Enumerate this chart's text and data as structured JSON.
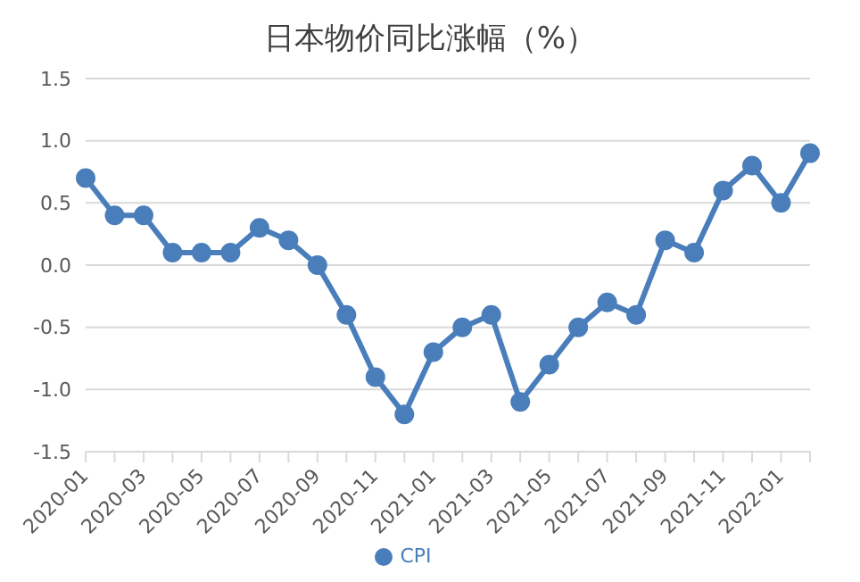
{
  "chart_data": {
    "type": "line",
    "title": "日本物价同比涨幅（%）",
    "categories": [
      "2020-01",
      null,
      "2020-03",
      null,
      "2020-05",
      null,
      "2020-07",
      null,
      "2020-09",
      null,
      "2020-11",
      null,
      "2021-01",
      null,
      "2021-03",
      null,
      "2021-05",
      null,
      "2021-07",
      null,
      "2021-09",
      null,
      "2021-11",
      null,
      "2022-01",
      null
    ],
    "series": [
      {
        "name": "CPI",
        "color": "#4a7ebb",
        "values": [
          0.7,
          0.4,
          0.4,
          0.1,
          0.1,
          0.1,
          0.3,
          0.2,
          0.0,
          -0.4,
          -0.9,
          -1.2,
          -0.7,
          -0.5,
          -0.4,
          -1.1,
          -0.8,
          -0.5,
          -0.3,
          -0.4,
          0.2,
          0.1,
          0.6,
          0.8,
          0.5,
          0.9
        ]
      }
    ],
    "ylim": [
      -1.5,
      1.5
    ],
    "yticks": [
      {
        "value": -1.5,
        "label": "-1.5"
      },
      {
        "value": -1,
        "label": "-1.0"
      },
      {
        "value": -0.5,
        "label": "-0.5"
      },
      {
        "value": 0,
        "label": "0.0"
      },
      {
        "value": 0.5,
        "label": "0.5"
      },
      {
        "value": 1,
        "label": "1.0"
      },
      {
        "value": 1.5,
        "label": "1.5"
      }
    ],
    "grid": "y",
    "legend": "bottom",
    "marker": "circle",
    "line_style": "solid"
  }
}
